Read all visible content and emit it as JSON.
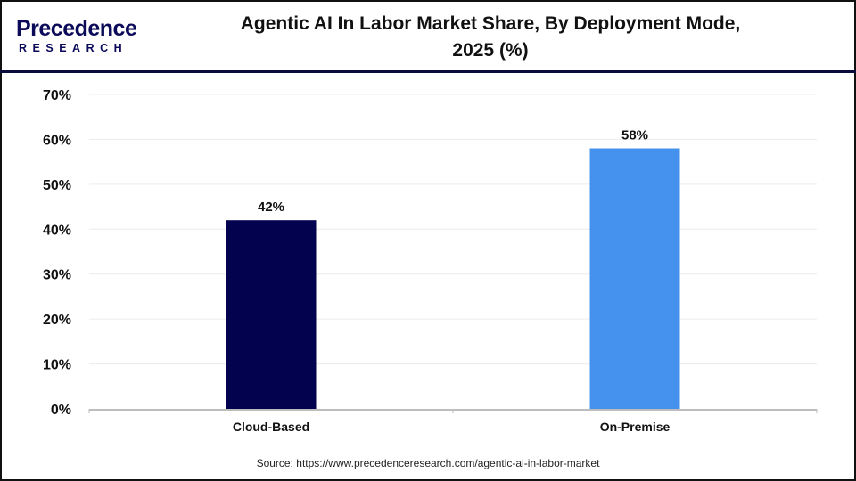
{
  "logo": {
    "line1": "Precedence",
    "line2": "RESEARCH"
  },
  "title_line1": "Agentic AI In Labor Market Share, By Deployment Mode,",
  "title_line2": "2025 (%)",
  "source": "Source: https://www.precedenceresearch.com/agentic-ai-in-labor-market",
  "chart_data": {
    "type": "bar",
    "title": "Agentic AI In Labor Market Share, By Deployment Mode, 2025 (%)",
    "categories": [
      "Cloud-Based",
      "On-Premise"
    ],
    "values": [
      42,
      58
    ],
    "data_labels": [
      "42%",
      "58%"
    ],
    "colors": [
      "#02024f",
      "#4592ee"
    ],
    "ylim": [
      0,
      70
    ],
    "yticks": [
      "0%",
      "10%",
      "20%",
      "30%",
      "40%",
      "50%",
      "60%",
      "70%"
    ],
    "grid": true,
    "legend": "none"
  }
}
